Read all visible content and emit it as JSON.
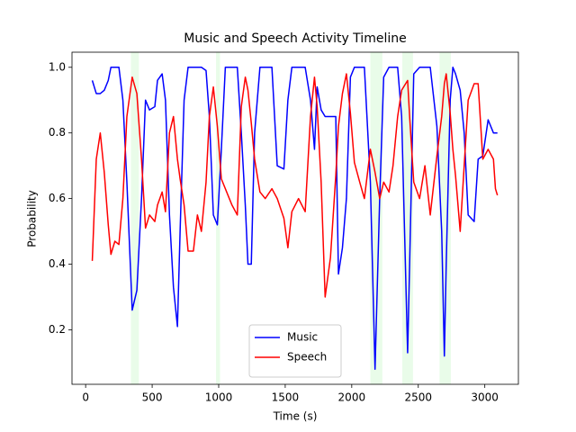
{
  "chart_data": {
    "type": "line",
    "title": "Music and Speech Activity Timeline",
    "x_label": "Time (s)",
    "y_label": "Probability",
    "x": [
      50,
      80,
      110,
      140,
      170,
      190,
      220,
      250,
      280,
      310,
      350,
      385,
      420,
      450,
      480,
      520,
      540,
      575,
      600,
      630,
      660,
      690,
      710,
      740,
      770,
      810,
      840,
      870,
      905,
      930,
      960,
      990,
      1020,
      1050,
      1100,
      1140,
      1170,
      1200,
      1220,
      1245,
      1270,
      1310,
      1350,
      1400,
      1440,
      1490,
      1520,
      1550,
      1600,
      1650,
      1690,
      1720,
      1740,
      1770,
      1800,
      1840,
      1880,
      1900,
      1930,
      1960,
      1990,
      2020,
      2060,
      2095,
      2140,
      2175,
      2210,
      2240,
      2280,
      2310,
      2345,
      2375,
      2420,
      2435,
      2466,
      2510,
      2550,
      2590,
      2640,
      2676,
      2696,
      2710,
      2740,
      2760,
      2780,
      2815,
      2845,
      2875,
      2920,
      2950,
      2985,
      3025,
      3065,
      3080,
      3095
    ],
    "series": [
      {
        "name": "Music",
        "color": "#0000ff",
        "values": [
          0.96,
          0.92,
          0.92,
          0.93,
          0.96,
          1.0,
          1.0,
          1.0,
          0.9,
          0.65,
          0.26,
          0.32,
          0.6,
          0.9,
          0.87,
          0.88,
          0.96,
          0.98,
          0.9,
          0.55,
          0.33,
          0.21,
          0.5,
          0.9,
          1.0,
          1.0,
          1.0,
          1.0,
          0.99,
          0.85,
          0.55,
          0.52,
          0.75,
          1.0,
          1.0,
          1.0,
          0.8,
          0.58,
          0.4,
          0.4,
          0.8,
          1.0,
          1.0,
          1.0,
          0.7,
          0.69,
          0.9,
          1.0,
          1.0,
          1.0,
          0.9,
          0.75,
          0.94,
          0.87,
          0.85,
          0.85,
          0.85,
          0.37,
          0.45,
          0.6,
          0.97,
          1.0,
          1.0,
          1.0,
          0.65,
          0.08,
          0.6,
          0.97,
          1.0,
          1.0,
          1.0,
          0.85,
          0.13,
          0.4,
          0.98,
          1.0,
          1.0,
          1.0,
          0.82,
          0.5,
          0.12,
          0.4,
          0.9,
          1.0,
          0.98,
          0.93,
          0.8,
          0.55,
          0.53,
          0.72,
          0.73,
          0.84,
          0.8,
          0.8,
          0.8
        ]
      },
      {
        "name": "Speech",
        "color": "#ff0000",
        "values": [
          0.41,
          0.72,
          0.8,
          0.68,
          0.52,
          0.43,
          0.47,
          0.46,
          0.6,
          0.85,
          0.97,
          0.92,
          0.72,
          0.51,
          0.55,
          0.53,
          0.58,
          0.62,
          0.56,
          0.8,
          0.85,
          0.72,
          0.66,
          0.58,
          0.44,
          0.44,
          0.55,
          0.5,
          0.65,
          0.85,
          0.94,
          0.82,
          0.66,
          0.63,
          0.58,
          0.55,
          0.88,
          0.97,
          0.93,
          0.83,
          0.72,
          0.62,
          0.6,
          0.63,
          0.6,
          0.54,
          0.45,
          0.56,
          0.6,
          0.56,
          0.85,
          0.97,
          0.88,
          0.65,
          0.3,
          0.42,
          0.67,
          0.82,
          0.92,
          0.98,
          0.86,
          0.71,
          0.65,
          0.6,
          0.75,
          0.68,
          0.6,
          0.65,
          0.62,
          0.7,
          0.85,
          0.93,
          0.96,
          0.85,
          0.65,
          0.6,
          0.7,
          0.55,
          0.73,
          0.85,
          0.95,
          0.98,
          0.86,
          0.75,
          0.67,
          0.5,
          0.7,
          0.9,
          0.95,
          0.95,
          0.72,
          0.75,
          0.72,
          0.63,
          0.61
        ]
      }
    ],
    "spans": [
      [
        340,
        400
      ],
      [
        980,
        1010
      ],
      [
        2140,
        2230
      ],
      [
        2380,
        2460
      ],
      [
        2660,
        2745
      ]
    ],
    "span_color": "#90ee90",
    "xlim": [
      -102.5,
      3252.5
    ],
    "ylim": [
      0.034,
      1.046
    ],
    "xticks": [
      0,
      500,
      1000,
      1500,
      2000,
      2500,
      3000
    ],
    "yticks": [
      0.2,
      0.4,
      0.6,
      0.8,
      {
        "value": 1,
        "label": "1.0"
      }
    ],
    "legend": "lower center"
  }
}
